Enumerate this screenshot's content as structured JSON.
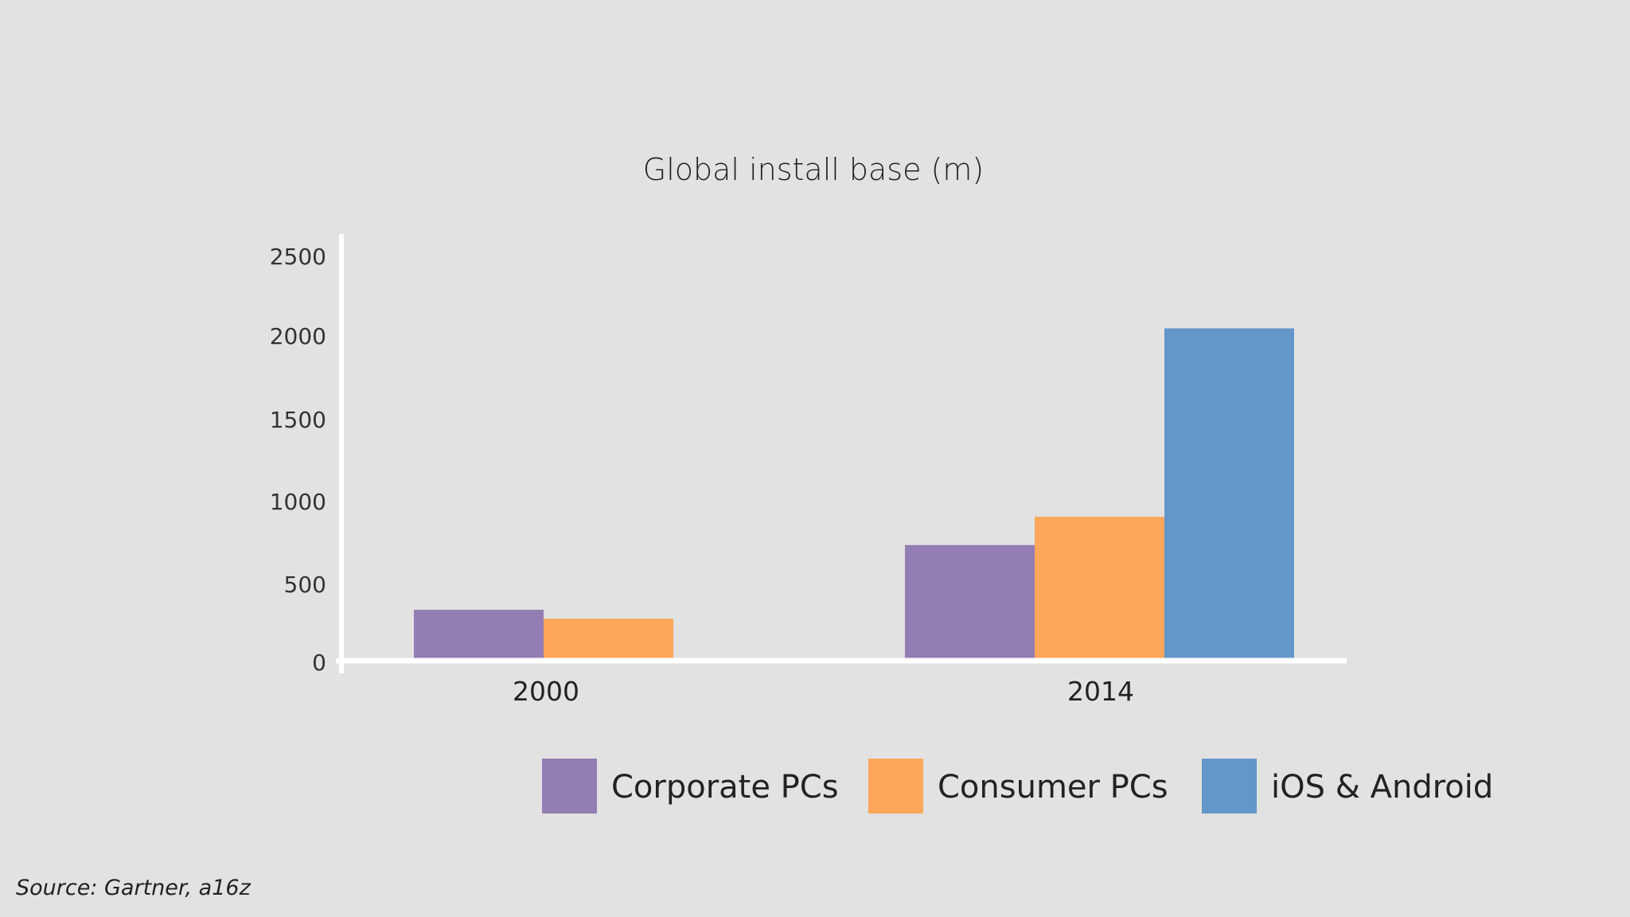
{
  "chart_data": {
    "type": "bar",
    "title": "Global install base (m)",
    "categories": [
      "2000",
      "2014"
    ],
    "series": [
      {
        "name": "Corporate PCs",
        "values": [
          300,
          700
        ],
        "color": "#937db3"
      },
      {
        "name": "Consumer PCs",
        "values": [
          245,
          875
        ],
        "color": "#fca75a"
      },
      {
        "name": "iOS & Android",
        "values": [
          0,
          2040
        ],
        "color": "#6497c9"
      }
    ],
    "yticks": [
      0,
      500,
      1000,
      1500,
      2000,
      2500
    ],
    "ylim": [
      0,
      2500
    ],
    "xlabel": "",
    "ylabel": "",
    "grid": false,
    "legend_position": "bottom"
  },
  "source": "Source: Gartner, a16z"
}
